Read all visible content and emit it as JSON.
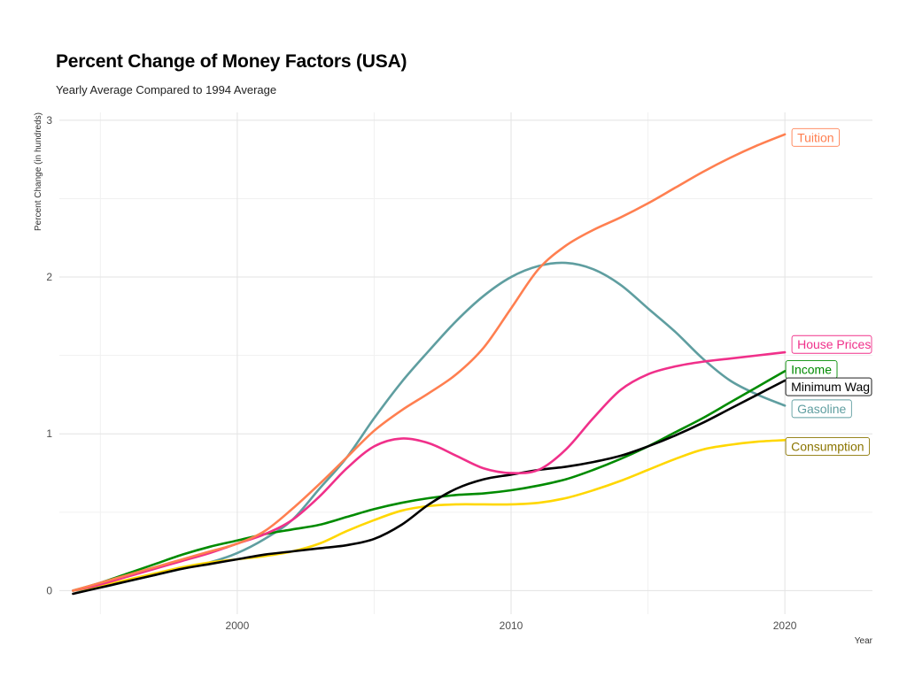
{
  "chart_data": {
    "type": "line",
    "title": "Percent Change of Money Factors (USA)",
    "subtitle": "Yearly Average Compared to 1994 Average",
    "xlabel": "Year",
    "ylabel": "Percent Change (in hundreds)",
    "xlim": [
      1993.5,
      2023.2
    ],
    "ylim": [
      -0.15,
      3.05
    ],
    "xticks": [
      2000,
      2010,
      2020
    ],
    "yticks": [
      0,
      1,
      2,
      3
    ],
    "x_minor": [
      1995,
      2005,
      2015
    ],
    "y_minor": [
      0.5,
      1.5,
      2.5
    ],
    "grid": true,
    "legend": "direct labels at line ends",
    "series": [
      {
        "name": "Tuition",
        "color": "#FF7F50",
        "x": [
          1994,
          1995,
          1996,
          1997,
          1998,
          1999,
          2000,
          2001,
          2002,
          2003,
          2004,
          2005,
          2006,
          2007,
          2008,
          2009,
          2010,
          2011,
          2012,
          2013,
          2014,
          2015,
          2016,
          2017,
          2018,
          2019,
          2020
        ],
        "y": [
          0.0,
          0.05,
          0.1,
          0.15,
          0.2,
          0.25,
          0.3,
          0.38,
          0.52,
          0.68,
          0.85,
          1.02,
          1.15,
          1.26,
          1.38,
          1.55,
          1.8,
          2.05,
          2.2,
          2.3,
          2.38,
          2.47,
          2.57,
          2.67,
          2.76,
          2.84,
          2.91
        ]
      },
      {
        "name": "Gasoline",
        "color": "#5F9EA0",
        "x": [
          1994,
          1995,
          1996,
          1997,
          1998,
          1999,
          2000,
          2001,
          2002,
          2003,
          2004,
          2005,
          2006,
          2007,
          2008,
          2009,
          2010,
          2011,
          2012,
          2013,
          2014,
          2015,
          2016,
          2017,
          2018,
          2019,
          2020
        ],
        "y": [
          0.0,
          0.02,
          0.06,
          0.1,
          0.14,
          0.18,
          0.24,
          0.33,
          0.45,
          0.65,
          0.85,
          1.1,
          1.33,
          1.53,
          1.72,
          1.88,
          2.0,
          2.07,
          2.09,
          2.05,
          1.95,
          1.8,
          1.65,
          1.48,
          1.34,
          1.25,
          1.18
        ]
      },
      {
        "name": "House Prices",
        "color": "#F0308A",
        "x": [
          1994,
          1995,
          1996,
          1997,
          1998,
          1999,
          2000,
          2001,
          2002,
          2003,
          2004,
          2005,
          2006,
          2007,
          2008,
          2009,
          2010,
          2011,
          2012,
          2013,
          2014,
          2015,
          2016,
          2017,
          2018,
          2019,
          2020
        ],
        "y": [
          0.0,
          0.04,
          0.09,
          0.14,
          0.19,
          0.24,
          0.3,
          0.36,
          0.45,
          0.6,
          0.78,
          0.92,
          0.97,
          0.94,
          0.86,
          0.78,
          0.75,
          0.77,
          0.9,
          1.1,
          1.28,
          1.38,
          1.43,
          1.46,
          1.48,
          1.5,
          1.52
        ]
      },
      {
        "name": "Income",
        "color": "#008B00",
        "x": [
          1994,
          1995,
          1996,
          1997,
          1998,
          1999,
          2000,
          2001,
          2002,
          2003,
          2004,
          2005,
          2006,
          2007,
          2008,
          2009,
          2010,
          2011,
          2012,
          2013,
          2014,
          2015,
          2016,
          2017,
          2018,
          2019,
          2020
        ],
        "y": [
          0.0,
          0.05,
          0.11,
          0.17,
          0.23,
          0.28,
          0.32,
          0.36,
          0.39,
          0.42,
          0.47,
          0.52,
          0.56,
          0.59,
          0.61,
          0.62,
          0.64,
          0.67,
          0.71,
          0.77,
          0.84,
          0.92,
          1.01,
          1.1,
          1.2,
          1.3,
          1.4
        ]
      },
      {
        "name": "Minimum Wage",
        "color": "#000000",
        "x": [
          1994,
          1995,
          1996,
          1997,
          1998,
          1999,
          2000,
          2001,
          2002,
          2003,
          2004,
          2005,
          2006,
          2007,
          2008,
          2009,
          2010,
          2011,
          2012,
          2013,
          2014,
          2015,
          2016,
          2017,
          2018,
          2019,
          2020
        ],
        "y": [
          -0.02,
          0.02,
          0.06,
          0.1,
          0.14,
          0.17,
          0.2,
          0.23,
          0.25,
          0.27,
          0.29,
          0.33,
          0.42,
          0.55,
          0.65,
          0.71,
          0.74,
          0.77,
          0.79,
          0.82,
          0.86,
          0.92,
          0.99,
          1.07,
          1.16,
          1.25,
          1.34
        ]
      },
      {
        "name": "Consumption",
        "color": "#FFD700",
        "x": [
          1994,
          1995,
          1996,
          1997,
          1998,
          1999,
          2000,
          2001,
          2002,
          2003,
          2004,
          2005,
          2006,
          2007,
          2008,
          2009,
          2010,
          2011,
          2012,
          2013,
          2014,
          2015,
          2016,
          2017,
          2018,
          2019,
          2020
        ],
        "y": [
          0.0,
          0.03,
          0.07,
          0.11,
          0.15,
          0.18,
          0.2,
          0.22,
          0.25,
          0.3,
          0.38,
          0.45,
          0.51,
          0.54,
          0.55,
          0.55,
          0.55,
          0.56,
          0.59,
          0.64,
          0.7,
          0.77,
          0.84,
          0.9,
          0.93,
          0.95,
          0.96
        ]
      }
    ],
    "labels": [
      {
        "series": "Tuition",
        "text": "Tuition",
        "y": 2.89,
        "text_color": "#FF7F50",
        "border_color": "#FF7F50"
      },
      {
        "series": "House Prices",
        "text": "House Prices",
        "y": 1.57,
        "text_color": "#F0308A",
        "border_color": "#F0308A"
      },
      {
        "series": "Income",
        "text": "Income",
        "y": 1.41,
        "text_color": "#008B00",
        "border_color": "#008B00"
      },
      {
        "series": "Minimum Wage",
        "text": "Minimum Wag",
        "y": 1.3,
        "text_color": "#000000",
        "border_color": "#000000"
      },
      {
        "series": "Gasoline",
        "text": "Gasoline",
        "y": 1.16,
        "text_color": "#5F9EA0",
        "border_color": "#5F9EA0"
      },
      {
        "series": "Consumption",
        "text": "Consumption",
        "y": 0.92,
        "text_color": "#8B7500",
        "border_color": "#8B7500"
      }
    ]
  }
}
